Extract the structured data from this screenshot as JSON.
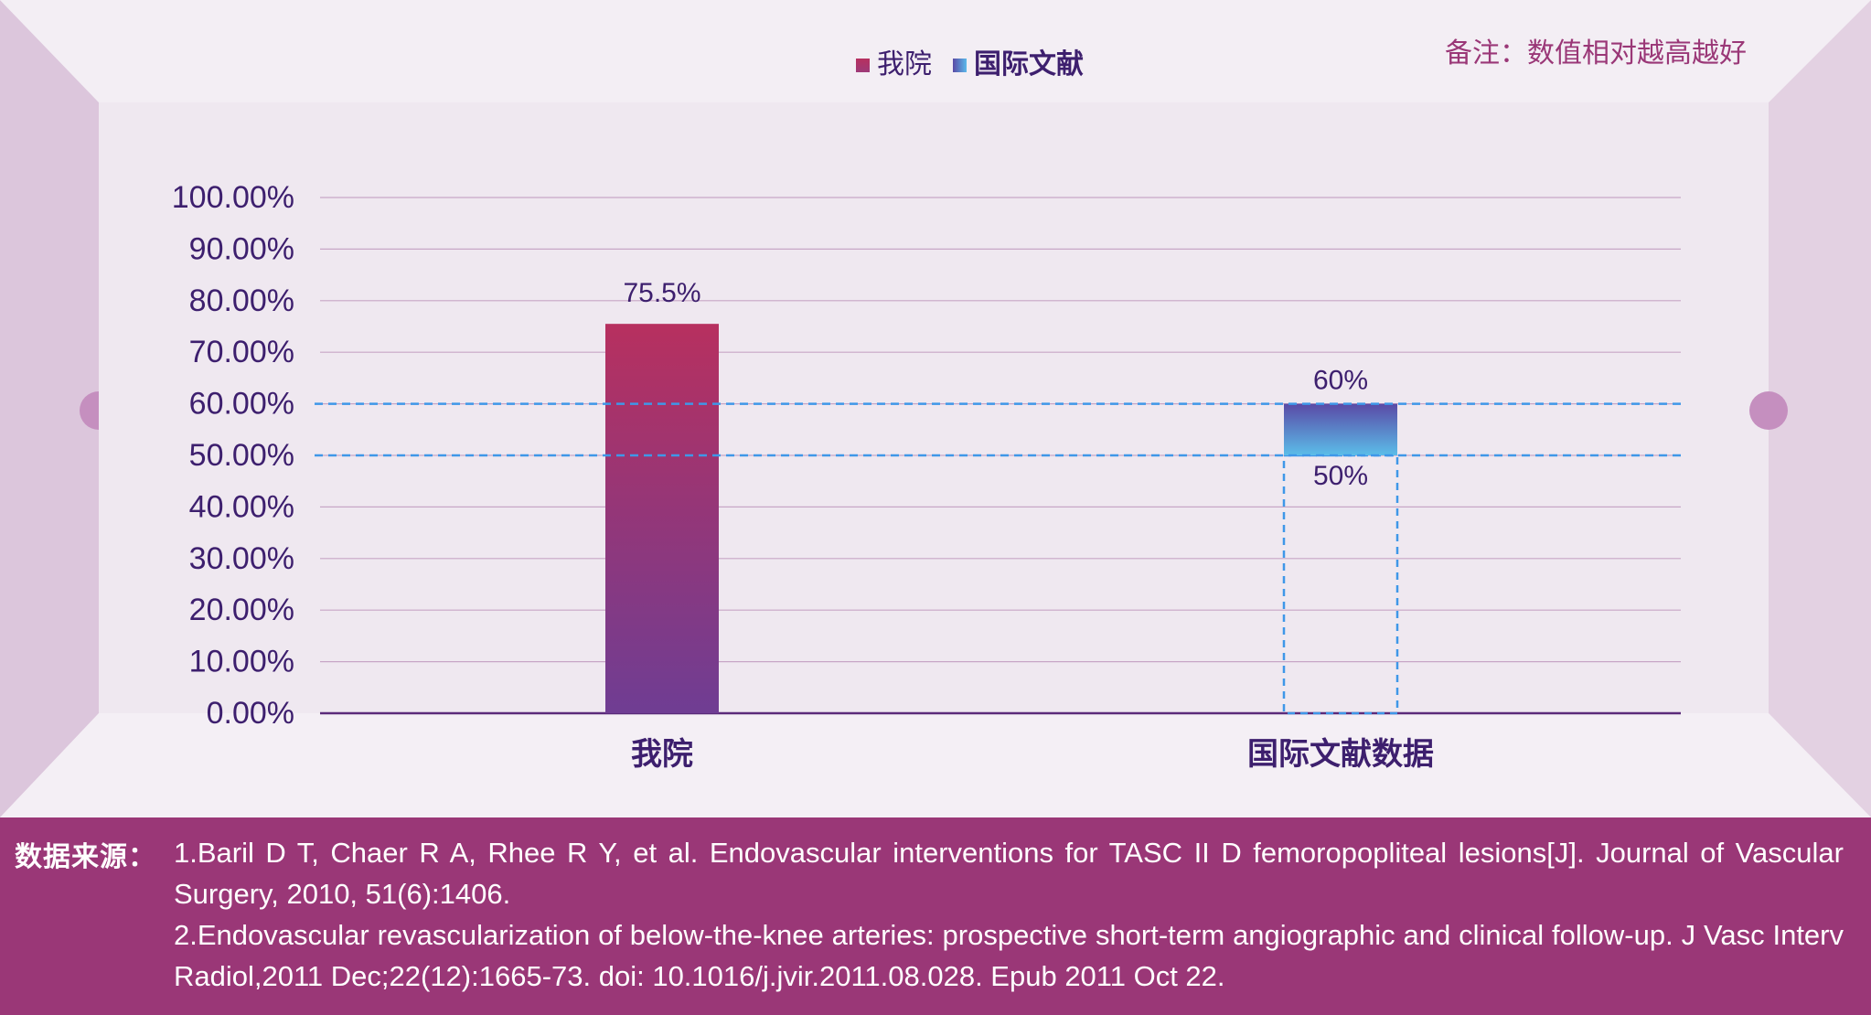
{
  "note": "备注：数值相对越高越好",
  "legend": [
    {
      "label": "我院",
      "color_top": "#b7305f",
      "color_bottom": "#9d3a78"
    },
    {
      "label": "国际文献",
      "color_top": "#5a4aa6",
      "color_bottom": "#5bb9ea"
    }
  ],
  "chart_data": {
    "type": "bar",
    "title": "",
    "xlabel": "",
    "ylabel": "",
    "categories": [
      "我院",
      "国际文献数据"
    ],
    "ylim": [
      0,
      100
    ],
    "yticks": [
      0,
      10,
      20,
      30,
      40,
      50,
      60,
      70,
      80,
      90,
      100
    ],
    "ytick_labels": [
      "0.00%",
      "10.00%",
      "20.00%",
      "30.00%",
      "40.00%",
      "50.00%",
      "60.00%",
      "70.00%",
      "80.00%",
      "90.00%",
      "100.00%"
    ],
    "bars": [
      {
        "category": "我院",
        "low": 0,
        "high": 75.5,
        "label": "75.5%"
      },
      {
        "category": "国际文献数据",
        "low": 50,
        "high": 60,
        "label_high": "60%",
        "label_low": "50%"
      }
    ],
    "reference_lines": [
      60,
      50
    ],
    "grid": true,
    "legend_position": "top-center"
  },
  "sources": {
    "label": "数据来源：",
    "items": [
      "1.Baril D T, Chaer R A, Rhee R Y, et al. Endovascular interventions for TASC II D femoropopliteal lesions[J]. Journal of Vascular Surgery, 2010, 51(6):1406.",
      "2.Endovascular revascularization of below-the-knee arteries: prospective short-term angiographic and clinical follow-up. J Vasc Interv Radiol,2011 Dec;22(12):1665-73. doi: 10.1016/j.jvir.2011.08.028. Epub 2011 Oct 22."
    ]
  },
  "colors": {
    "text": "#3d1f6e",
    "grid": "#c7a6c6",
    "reference": "#3f97e8",
    "note": "#9a3777",
    "footer_bg": "#9a3777"
  }
}
